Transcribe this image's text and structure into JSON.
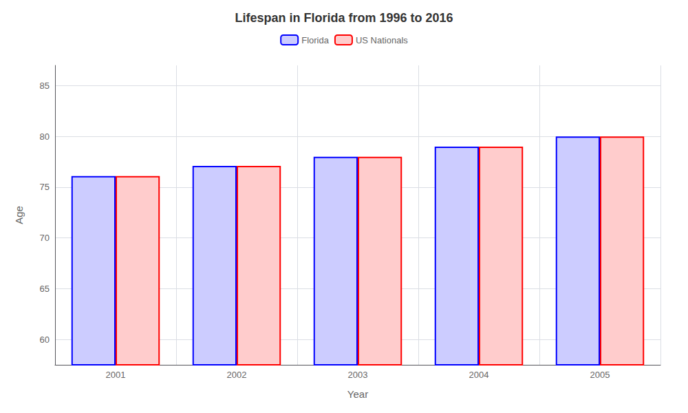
{
  "chart_data": {
    "type": "bar",
    "title": "Lifespan in Florida from 1996 to 2016",
    "xlabel": "Year",
    "ylabel": "Age",
    "categories": [
      "2001",
      "2002",
      "2003",
      "2004",
      "2005"
    ],
    "series": [
      {
        "name": "Florida",
        "color": "#0000ff",
        "values": [
          76.1,
          77.1,
          78.0,
          79.0,
          80.0
        ]
      },
      {
        "name": "US Nationals",
        "color": "#ff0000",
        "values": [
          76.1,
          77.1,
          78.0,
          79.0,
          80.0
        ]
      }
    ],
    "ylim": [
      57.5,
      87
    ],
    "yticks": [
      60,
      65,
      70,
      75,
      80,
      85
    ],
    "grid": true,
    "legend": "top"
  }
}
